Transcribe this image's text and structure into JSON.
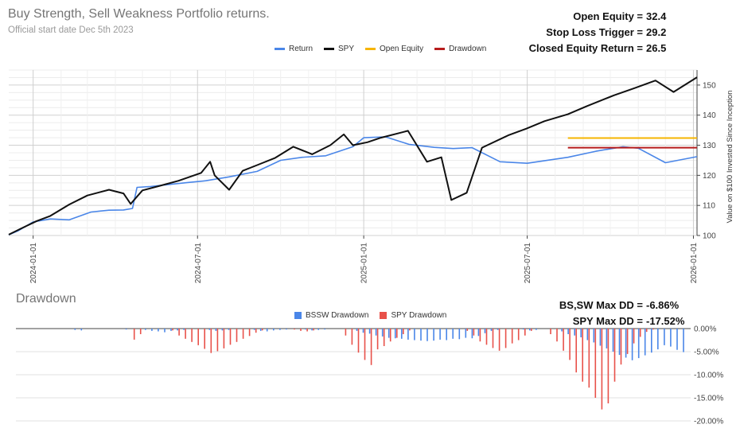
{
  "header": {
    "title": "Buy Strength, Sell Weakness Portfolio returns.",
    "subtitle": "Official start date Dec 5th 2023"
  },
  "stats": [
    {
      "label": "Open Equity =",
      "value": "32.4"
    },
    {
      "label": "Stop Loss Trigger =",
      "value": "29.2"
    },
    {
      "label": "Closed Equity Return =",
      "value": "26.5"
    }
  ],
  "dd_stats": [
    {
      "label": "BS,SW Max DD =",
      "value": "-6.86%"
    },
    {
      "label": "SPY Max DD =",
      "value": "-17.52%"
    }
  ],
  "drawdown_title": "Drawdown",
  "colors": {
    "return": "#4a86e8",
    "spy": "#111111",
    "open_equity": "#f6b400",
    "drawdown": "#b71c1c",
    "bssw_dd": "#4a86e8",
    "spy_dd": "#e8514a"
  },
  "chart_data": [
    {
      "type": "line",
      "title": "",
      "ylabel": "Value on $100 Invested Since Inception",
      "ylim": [
        100,
        155
      ],
      "y_ticks": [
        "100",
        "110",
        "120",
        "130",
        "140",
        "150"
      ],
      "x_ticks": [
        "2024-01-01",
        "2024-07-01",
        "2025-01-01",
        "2025-07-01",
        "2026-01-01"
      ],
      "x_range": [
        "2023-12-05",
        "2026-01-05"
      ],
      "grid": true,
      "legend": "top",
      "legend_entries": [
        "Return",
        "SPY",
        "Open Equity",
        "Drawdown"
      ],
      "series": [
        {
          "name": "Return",
          "x": [
            "2023-12-05",
            "2023-12-15",
            "2024-01-01",
            "2024-01-20",
            "2024-02-10",
            "2024-03-05",
            "2024-03-25",
            "2024-04-10",
            "2024-04-20",
            "2024-04-25",
            "2024-05-10",
            "2024-06-01",
            "2024-06-20",
            "2024-07-10",
            "2024-08-05",
            "2024-09-05",
            "2024-10-01",
            "2024-10-25",
            "2024-11-20",
            "2024-12-20",
            "2025-01-01",
            "2025-01-25",
            "2025-02-20",
            "2025-03-20",
            "2025-04-10",
            "2025-05-01",
            "2025-06-01",
            "2025-07-01",
            "2025-08-15",
            "2025-09-15",
            "2025-10-15",
            "2025-11-01",
            "2025-12-01",
            "2026-01-05"
          ],
          "values": [
            100.2,
            101.5,
            104.5,
            105.5,
            105.2,
            107.8,
            108.4,
            108.5,
            109,
            116,
            116.3,
            117,
            117.6,
            118.2,
            119.5,
            121.3,
            125,
            126,
            126.5,
            129.5,
            132.5,
            132.8,
            130.3,
            129.3,
            128.9,
            129.2,
            124.5,
            124,
            126,
            128,
            129.5,
            129,
            124.2,
            126.2
          ]
        },
        {
          "name": "SPY",
          "x": [
            "2023-12-05",
            "2023-12-20",
            "2024-01-05",
            "2024-01-20",
            "2024-02-10",
            "2024-03-01",
            "2024-03-25",
            "2024-04-10",
            "2024-04-18",
            "2024-05-01",
            "2024-05-20",
            "2024-06-10",
            "2024-07-05",
            "2024-07-15",
            "2024-07-20",
            "2024-08-05",
            "2024-08-20",
            "2024-09-05",
            "2024-09-25",
            "2024-10-15",
            "2024-11-05",
            "2024-11-25",
            "2024-12-10",
            "2024-12-20",
            "2025-01-05",
            "2025-01-20",
            "2025-02-19",
            "2025-03-12",
            "2025-03-28",
            "2025-04-08",
            "2025-04-25",
            "2025-05-12",
            "2025-06-10",
            "2025-06-30",
            "2025-07-20",
            "2025-08-15",
            "2025-09-05",
            "2025-10-05",
            "2025-10-28",
            "2025-11-20",
            "2025-12-10",
            "2026-01-05"
          ],
          "values": [
            100.3,
            102.5,
            104.8,
            106.5,
            110.3,
            113.3,
            115.2,
            114,
            110.5,
            115,
            116.5,
            118.2,
            120.8,
            124.5,
            120,
            115.2,
            121.5,
            123.4,
            125.8,
            129.5,
            127,
            130,
            133.6,
            130,
            131,
            132.5,
            134.8,
            124.5,
            126,
            111.8,
            114.2,
            129.2,
            133.3,
            135.5,
            138,
            140.3,
            143,
            146.6,
            149,
            151.5,
            147.7,
            152.6
          ]
        },
        {
          "name": "Open Equity",
          "x": [
            "2025-08-15",
            "2026-01-05"
          ],
          "values": [
            132.4,
            132.4
          ]
        },
        {
          "name": "Drawdown",
          "x": [
            "2025-08-15",
            "2026-01-05"
          ],
          "values": [
            129.2,
            129.2
          ]
        }
      ]
    },
    {
      "type": "bar",
      "title": "Drawdown",
      "ylabel": "",
      "ylim": [
        -20,
        0
      ],
      "y_ticks": [
        "0.00%",
        "-5.00%",
        "-10.00%",
        "-15.00%",
        "-20.00%"
      ],
      "legend": "top",
      "legend_entries": [
        "BSSW Drawdown",
        "SPY Drawdown"
      ],
      "series": [
        {
          "name": "BSSW Drawdown",
          "values": [
            0,
            0,
            0,
            0,
            0,
            -0.3,
            -0.4,
            0,
            0,
            0,
            0,
            0,
            0,
            -0.2,
            0,
            0,
            -0.3,
            -0.5,
            -0.6,
            -0.8,
            -0.5,
            -0.4,
            -0.3,
            0,
            0,
            0,
            -0.3,
            -0.5,
            -0.4,
            -0.3,
            0,
            0,
            0,
            -0.3,
            -0.5,
            -0.6,
            -0.4,
            -0.3,
            -0.2,
            0,
            0,
            -0.2,
            -0.4,
            -0.3,
            -0.2,
            0,
            0,
            0,
            0,
            -0.5,
            -0.9,
            -1.1,
            -1.5,
            -1.7,
            -2,
            -2.1,
            -2.2,
            -2.4,
            -2.5,
            -2.6,
            -2.7,
            -2.6,
            -2.4,
            -2.5,
            -2.2,
            -2.3,
            -2,
            -2.1,
            -1.6,
            -1,
            -0.5,
            -0.3,
            0,
            0,
            0,
            -0.2,
            -0.4,
            -0.3,
            0,
            0,
            0,
            -0.6,
            -1.2,
            -1.5,
            -1.9,
            -2.5,
            -3,
            -3.7,
            -4.3,
            -5,
            -5.7,
            -6.3,
            -6.86,
            -6.4,
            -5.8,
            -5.2,
            -4.5,
            -3.6,
            -3.9,
            -4.6,
            -5.1
          ]
        },
        {
          "name": "SPY Drawdown",
          "values": [
            0,
            0,
            0,
            0,
            0,
            0,
            0,
            0,
            0,
            0,
            0,
            0,
            0,
            0,
            -2.4,
            -1.2,
            0,
            0,
            0,
            0,
            -0.4,
            -1.5,
            -2.2,
            -2.9,
            -3.6,
            -4.4,
            -5.3,
            -4.9,
            -4.3,
            -3.5,
            -2.9,
            -2.2,
            -1.6,
            -0.9,
            -0.4,
            0,
            0,
            0,
            0,
            -0.2,
            -0.5,
            -0.6,
            -0.4,
            0,
            0,
            0,
            0,
            -1.5,
            -3.5,
            -5.2,
            -6.8,
            -7.9,
            -4.5,
            -3.8,
            -2.8,
            -2,
            -1.2,
            -0.4,
            0,
            0,
            0,
            0,
            0,
            0,
            0,
            0,
            -0.5,
            -1.5,
            -2.8,
            -3.5,
            -4.2,
            -4.8,
            -4.2,
            -3.2,
            -2.5,
            -1.5,
            -0.5,
            0,
            0,
            -1.2,
            -2.8,
            -4.8,
            -6.8,
            -9.5,
            -11.5,
            -12.8,
            -15,
            -17.52,
            -16.2,
            -11.5,
            -7.8,
            -5.5,
            -3.2,
            -1.8,
            -0.7,
            -0.2,
            0,
            0,
            0,
            0
          ]
        }
      ]
    }
  ]
}
